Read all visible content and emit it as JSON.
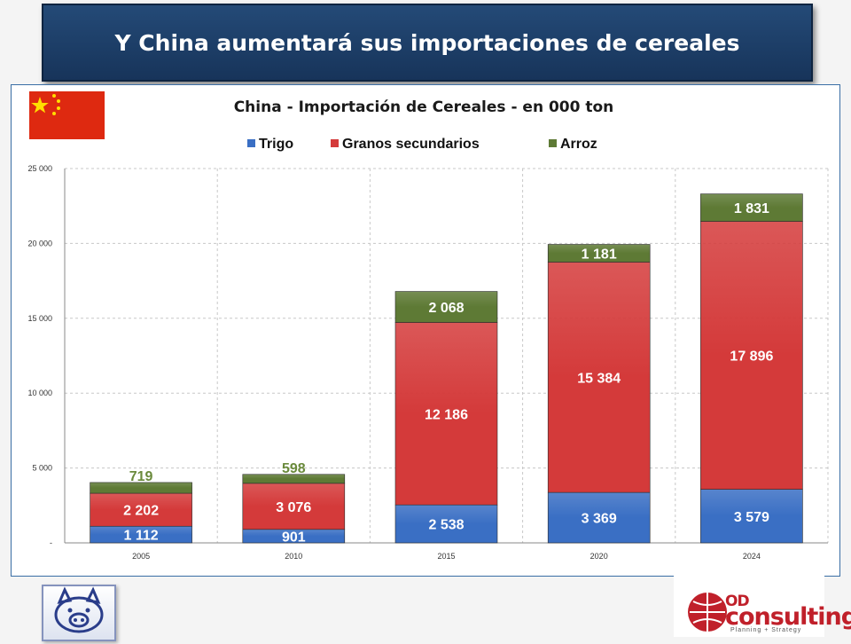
{
  "slide": {
    "title": "Y China aumentará sus importaciones de cereales"
  },
  "colors": {
    "trigo": "#3a6fc4",
    "granos": "#d43a3a",
    "arroz": "#5e7a35",
    "label_dark": "#6a8a3c"
  },
  "chart_data": {
    "type": "bar",
    "stacked": true,
    "title": "China - Importación de Cereales - en 000 ton",
    "xlabel": "",
    "ylabel": "",
    "categories": [
      "2005",
      "2010",
      "2015",
      "2020",
      "2024"
    ],
    "series": [
      {
        "name": "Trigo",
        "values": [
          1112,
          901,
          2538,
          3369,
          3579
        ],
        "labels": [
          "1 112",
          "901",
          "2 538",
          "3 369",
          "3 579"
        ]
      },
      {
        "name": "Granos secundarios",
        "values": [
          2202,
          3076,
          12186,
          15384,
          17896
        ],
        "labels": [
          "2 202",
          "3 076",
          "12 186",
          "15 384",
          "17 896"
        ]
      },
      {
        "name": "Arroz",
        "values": [
          719,
          598,
          2068,
          1181,
          1831
        ],
        "labels": [
          "719",
          "598",
          "2 068",
          "1 181",
          "1 831"
        ]
      }
    ],
    "ylim": [
      0,
      25000
    ],
    "yticks": [
      0,
      5000,
      10000,
      15000,
      20000,
      25000
    ],
    "ytick_labels": [
      "-",
      "5 000",
      "10 000",
      "15 000",
      "20 000",
      "25 000"
    ],
    "legend": "top",
    "grid": true
  },
  "footer": {
    "brand_od": "OD",
    "brand_consulting": "consulting",
    "brand_tagline": "Planning + Strategy"
  }
}
